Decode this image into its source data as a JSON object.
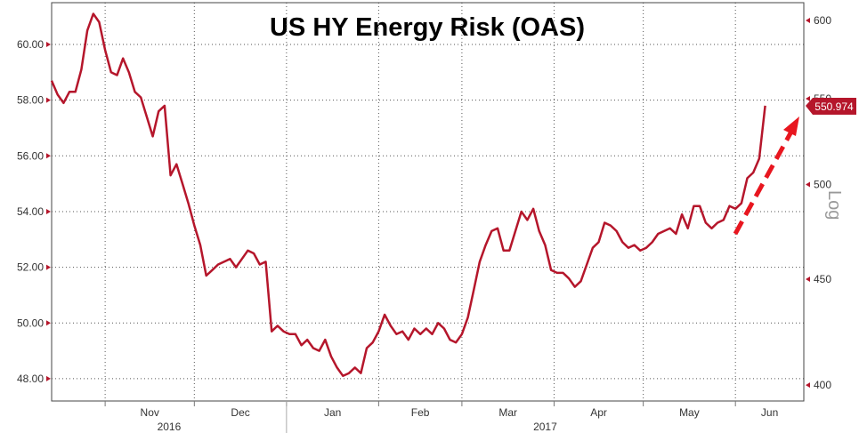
{
  "chart_data": {
    "type": "line",
    "title": "US HY Energy Risk (OAS)",
    "colors": {
      "series": "#b5162b",
      "arrow": "#e8161f",
      "grid": "#555555",
      "text": "#333333"
    },
    "grid": true,
    "x_months": [
      {
        "label": "Nov",
        "date": "2016-11"
      },
      {
        "label": "Dec",
        "date": "2016-12"
      },
      {
        "label": "Jan",
        "date": "2017-01"
      },
      {
        "label": "Feb",
        "date": "2017-02"
      },
      {
        "label": "Mar",
        "date": "2017-03"
      },
      {
        "label": "Apr",
        "date": "2017-04"
      },
      {
        "label": "May",
        "date": "2017-05"
      },
      {
        "label": "Jun",
        "date": "2017-06"
      }
    ],
    "x_years": [
      {
        "label": "2016",
        "date": "2016-11"
      },
      {
        "label": "2017",
        "date": "2017-03"
      }
    ],
    "xlim": [
      "2016-10-14",
      "2017-06-24"
    ],
    "left_axis": {
      "ylim": [
        47.2,
        61.5
      ],
      "ticks": [
        "48.00",
        "50.00",
        "52.00",
        "54.00",
        "56.00",
        "58.00",
        "60.00"
      ]
    },
    "right_axis": {
      "scale": "log",
      "ylim": [
        393,
        612
      ],
      "ticks": [
        "400",
        "450",
        "500",
        "550",
        "600"
      ],
      "label": "Log"
    },
    "last_value_label": "550.974",
    "annotation": "dashed arrow pointing up",
    "series": [
      {
        "axis": "left",
        "x": [
          "2016-10-14",
          "2016-10-16",
          "2016-10-18",
          "2016-10-20",
          "2016-10-22",
          "2016-10-24",
          "2016-10-26",
          "2016-10-28",
          "2016-10-30",
          "2016-11-01",
          "2016-11-03",
          "2016-11-05",
          "2016-11-07",
          "2016-11-09",
          "2016-11-11",
          "2016-11-13",
          "2016-11-15",
          "2016-11-17",
          "2016-11-19",
          "2016-11-21",
          "2016-11-23",
          "2016-11-25",
          "2016-11-27",
          "2016-11-29",
          "2016-12-01",
          "2016-12-03",
          "2016-12-05",
          "2016-12-07",
          "2016-12-09",
          "2016-12-11",
          "2016-12-13",
          "2016-12-15",
          "2016-12-17",
          "2016-12-19",
          "2016-12-21",
          "2016-12-23",
          "2016-12-25",
          "2016-12-27",
          "2016-12-29",
          "2016-12-31",
          "2017-01-02",
          "2017-01-04",
          "2017-01-06",
          "2017-01-08",
          "2017-01-10",
          "2017-01-12",
          "2017-01-14",
          "2017-01-16",
          "2017-01-18",
          "2017-01-20",
          "2017-01-22",
          "2017-01-24",
          "2017-01-26",
          "2017-01-28",
          "2017-01-30",
          "2017-02-01",
          "2017-02-03",
          "2017-02-05",
          "2017-02-07",
          "2017-02-09",
          "2017-02-11",
          "2017-02-13",
          "2017-02-15",
          "2017-02-17",
          "2017-02-19",
          "2017-02-21",
          "2017-02-23",
          "2017-02-25",
          "2017-02-27",
          "2017-03-01",
          "2017-03-03",
          "2017-03-05",
          "2017-03-07",
          "2017-03-09",
          "2017-03-11",
          "2017-03-13",
          "2017-03-15",
          "2017-03-17",
          "2017-03-19",
          "2017-03-21",
          "2017-03-23",
          "2017-03-25",
          "2017-03-27",
          "2017-03-29",
          "2017-03-31",
          "2017-04-02",
          "2017-04-04",
          "2017-04-06",
          "2017-04-08",
          "2017-04-10",
          "2017-04-12",
          "2017-04-14",
          "2017-04-16",
          "2017-04-18",
          "2017-04-20",
          "2017-04-22",
          "2017-04-24",
          "2017-04-26",
          "2017-04-28",
          "2017-04-30",
          "2017-05-02",
          "2017-05-04",
          "2017-05-06",
          "2017-05-08",
          "2017-05-10",
          "2017-05-12",
          "2017-05-14",
          "2017-05-16",
          "2017-05-18",
          "2017-05-20",
          "2017-05-22",
          "2017-05-24",
          "2017-05-26",
          "2017-05-28",
          "2017-05-30",
          "2017-06-01",
          "2017-06-03",
          "2017-06-05",
          "2017-06-07",
          "2017-06-09",
          "2017-06-11"
        ],
        "y": [
          58.7,
          58.2,
          57.9,
          58.3,
          58.3,
          59.1,
          60.5,
          61.1,
          60.8,
          59.8,
          59.0,
          58.9,
          59.5,
          59.0,
          58.3,
          58.1,
          57.4,
          56.7,
          57.6,
          57.8,
          55.3,
          55.7,
          55.0,
          54.3,
          53.5,
          52.8,
          51.7,
          51.9,
          52.1,
          52.2,
          52.3,
          52.0,
          52.3,
          52.6,
          52.5,
          52.1,
          52.2,
          49.7,
          49.9,
          49.7,
          49.6,
          49.6,
          49.2,
          49.4,
          49.1,
          49.0,
          49.4,
          48.8,
          48.4,
          48.1,
          48.2,
          48.4,
          48.2,
          49.1,
          49.3,
          49.7,
          50.3,
          49.9,
          49.6,
          49.7,
          49.4,
          49.8,
          49.6,
          49.8,
          49.6,
          50.0,
          49.8,
          49.4,
          49.3,
          49.6,
          50.2,
          51.2,
          52.2,
          52.8,
          53.3,
          53.4,
          52.6,
          52.6,
          53.3,
          54.0,
          53.7,
          54.1,
          53.3,
          52.8,
          51.9,
          51.8,
          51.8,
          51.6,
          51.3,
          51.5,
          52.1,
          52.7,
          52.9,
          53.6,
          53.5,
          53.3,
          52.9,
          52.7,
          52.8,
          52.6,
          52.7,
          52.9,
          53.2,
          53.3,
          53.4,
          53.2,
          53.9,
          53.4,
          54.2,
          54.2,
          53.6,
          53.4,
          53.6,
          53.7,
          54.2,
          54.1,
          54.3,
          55.2,
          55.4,
          55.9,
          57.8
        ]
      }
    ]
  }
}
